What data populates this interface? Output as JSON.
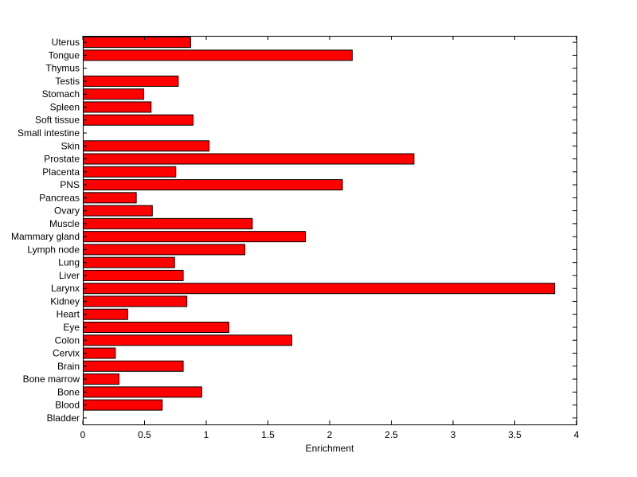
{
  "chart_data": {
    "type": "bar",
    "orientation": "horizontal",
    "title": "",
    "xlabel": "Enrichment",
    "ylabel": "",
    "xlim": [
      0,
      4
    ],
    "xticks": [
      "0",
      "0.5",
      "1",
      "1.5",
      "2",
      "2.5",
      "3",
      "3.5",
      "4"
    ],
    "categories": [
      "Bladder",
      "Blood",
      "Bone",
      "Bone marrow",
      "Brain",
      "Cervix",
      "Colon",
      "Eye",
      "Heart",
      "Kidney",
      "Larynx",
      "Liver",
      "Lung",
      "Lymph node",
      "Mammary gland",
      "Muscle",
      "Ovary",
      "Pancreas",
      "PNS",
      "Placenta",
      "Prostate",
      "Skin",
      "Small intestine",
      "Soft tissue",
      "Spleen",
      "Stomach",
      "Testis",
      "Thymus",
      "Tongue",
      "Uterus"
    ],
    "values": [
      0,
      0.64,
      0.96,
      0.29,
      0.81,
      0.26,
      1.69,
      1.18,
      0.36,
      0.84,
      3.82,
      0.81,
      0.74,
      1.31,
      1.8,
      1.37,
      0.56,
      0.43,
      2.1,
      0.75,
      2.68,
      1.02,
      0,
      0.89,
      0.55,
      0.49,
      0.77,
      0,
      2.18,
      0.87
    ],
    "bar_color": "#ff0000",
    "bar_edge_color": "#000000",
    "grid": false,
    "legend": "none"
  }
}
